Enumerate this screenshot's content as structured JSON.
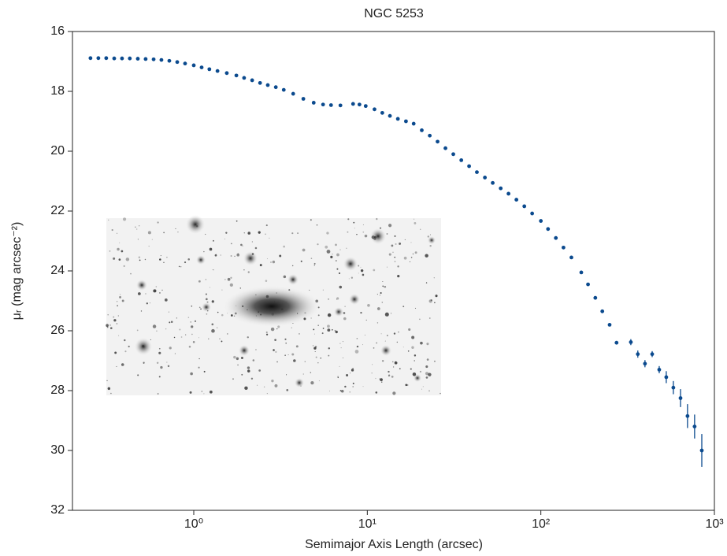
{
  "chart_data": {
    "type": "scatter",
    "title": "NGC 5253",
    "xlabel": "Semimajor Axis Length (arcsec)",
    "ylabel": "μᵣ (mag arcsec⁻²)",
    "color": "#0b4a8e",
    "xscale": "log",
    "yinverted": true,
    "xlim": [
      0.2,
      1000
    ],
    "ylim": [
      32,
      16
    ],
    "xticks": [
      {
        "value": 1,
        "label": "10⁰"
      },
      {
        "value": 10,
        "label": "10¹"
      },
      {
        "value": 100,
        "label": "10²"
      },
      {
        "value": 1000,
        "label": "10³"
      }
    ],
    "yticks": [
      16,
      18,
      20,
      22,
      24,
      26,
      28,
      30,
      32
    ],
    "x": [
      0.254,
      0.282,
      0.313,
      0.348,
      0.386,
      0.428,
      0.476,
      0.528,
      0.587,
      0.651,
      0.723,
      0.803,
      0.891,
      1.0,
      1.11,
      1.23,
      1.37,
      1.55,
      1.76,
      1.95,
      2.17,
      2.41,
      2.67,
      2.97,
      3.3,
      3.74,
      4.28,
      4.91,
      5.56,
      6.18,
      7.0,
      8.28,
      9.01,
      9.79,
      11.0,
      12.2,
      13.5,
      15.0,
      16.7,
      18.5,
      20.6,
      22.9,
      25.4,
      28.2,
      31.3,
      34.8,
      38.6,
      42.8,
      47.6,
      52.8,
      58.7,
      65.1,
      72.3,
      80.3,
      89.1,
      100,
      110,
      122,
      135,
      150,
      171,
      187,
      206,
      226,
      249,
      273,
      330,
      362,
      398,
      438,
      481,
      528,
      580,
      638,
      700,
      769,
      846
    ],
    "values": [
      16.89,
      16.89,
      16.89,
      16.9,
      16.9,
      16.9,
      16.91,
      16.92,
      16.93,
      16.95,
      16.98,
      17.02,
      17.07,
      17.13,
      17.2,
      17.26,
      17.32,
      17.39,
      17.47,
      17.55,
      17.63,
      17.72,
      17.79,
      17.86,
      17.95,
      18.08,
      18.25,
      18.38,
      18.44,
      18.46,
      18.47,
      18.42,
      18.44,
      18.49,
      18.6,
      18.72,
      18.82,
      18.92,
      19.0,
      19.08,
      19.3,
      19.48,
      19.68,
      19.9,
      20.1,
      20.3,
      20.5,
      20.7,
      20.88,
      21.06,
      21.24,
      21.42,
      21.62,
      21.84,
      22.08,
      22.33,
      22.6,
      22.9,
      23.22,
      23.55,
      24.05,
      24.45,
      24.9,
      25.35,
      25.8,
      26.4,
      26.38,
      26.78,
      27.1,
      26.78,
      27.3,
      27.55,
      27.9,
      28.25,
      28.85,
      29.2,
      30.0
    ],
    "errors": [
      null,
      null,
      null,
      null,
      null,
      null,
      null,
      null,
      null,
      null,
      null,
      null,
      null,
      null,
      null,
      null,
      null,
      null,
      null,
      null,
      null,
      null,
      null,
      null,
      null,
      null,
      null,
      null,
      null,
      null,
      null,
      null,
      null,
      null,
      null,
      null,
      null,
      null,
      null,
      null,
      null,
      null,
      null,
      null,
      null,
      null,
      null,
      null,
      null,
      null,
      null,
      null,
      null,
      null,
      null,
      null,
      null,
      null,
      null,
      null,
      null,
      null,
      null,
      null,
      null,
      null,
      0.1,
      0.12,
      0.12,
      0.1,
      0.12,
      0.2,
      0.22,
      0.3,
      0.4,
      0.4,
      0.55
    ]
  }
}
